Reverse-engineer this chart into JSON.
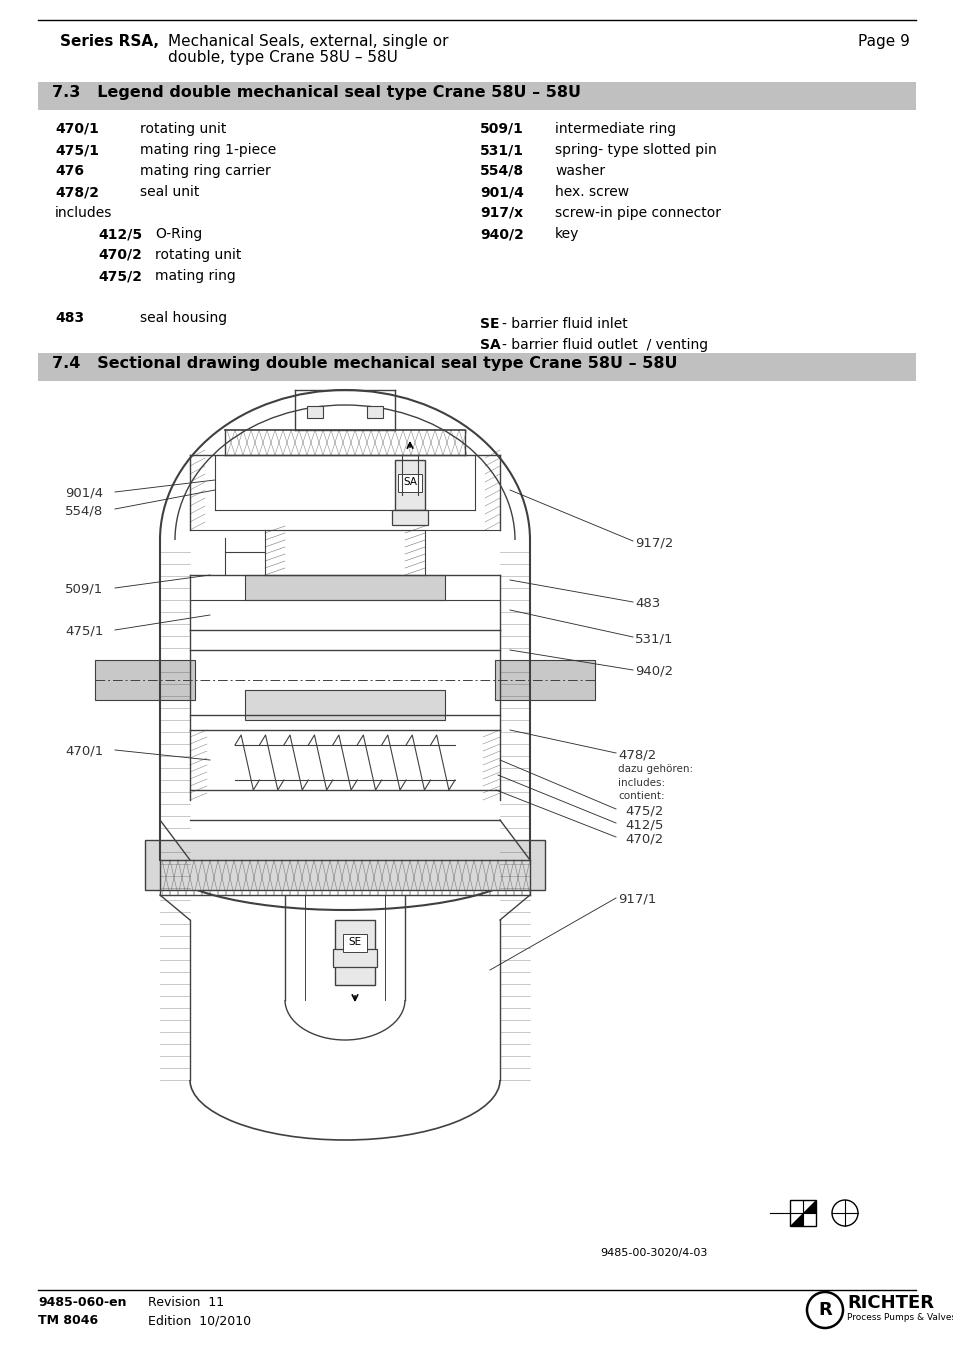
{
  "page_title_bold": "Series RSA,",
  "page_title_normal": "Mechanical Seals, external, single or",
  "page_title_normal2": "double, type Crane 58U – 58U",
  "page_number": "Page 9",
  "section_73_title": "7.3   Legend double mechanical seal type Crane 58U – 58U",
  "section_74_title": "7.4   Sectional drawing double mechanical seal type Crane 58U – 58U",
  "left_items": [
    [
      "470/1",
      "rotating unit"
    ],
    [
      "475/1",
      "mating ring 1-piece"
    ],
    [
      "476",
      "mating ring carrier"
    ],
    [
      "478/2",
      "seal unit"
    ]
  ],
  "includes_label": "includes",
  "sub_items": [
    [
      "412/5",
      "O-Ring"
    ],
    [
      "470/2",
      "rotating unit"
    ],
    [
      "475/2",
      "mating ring"
    ]
  ],
  "right_items": [
    [
      "509/1",
      "intermediate ring"
    ],
    [
      "531/1",
      "spring- type slotted pin"
    ],
    [
      "554/8",
      "washer"
    ],
    [
      "901/4",
      "hex. screw"
    ],
    [
      "917/x",
      "screw-in pipe connector"
    ],
    [
      "940/2",
      "key"
    ]
  ],
  "footer_left1": "9485-060-en",
  "footer_left2": "TM 8046",
  "footer_right1": "Revision  11",
  "footer_right2": "Edition  10/2010",
  "drawing_ref": "9485-00-3020/4-03",
  "bg_color": "#ffffff",
  "section_bg": "#c0c0c0",
  "label_color": "#555555",
  "draw_color": "#404040"
}
